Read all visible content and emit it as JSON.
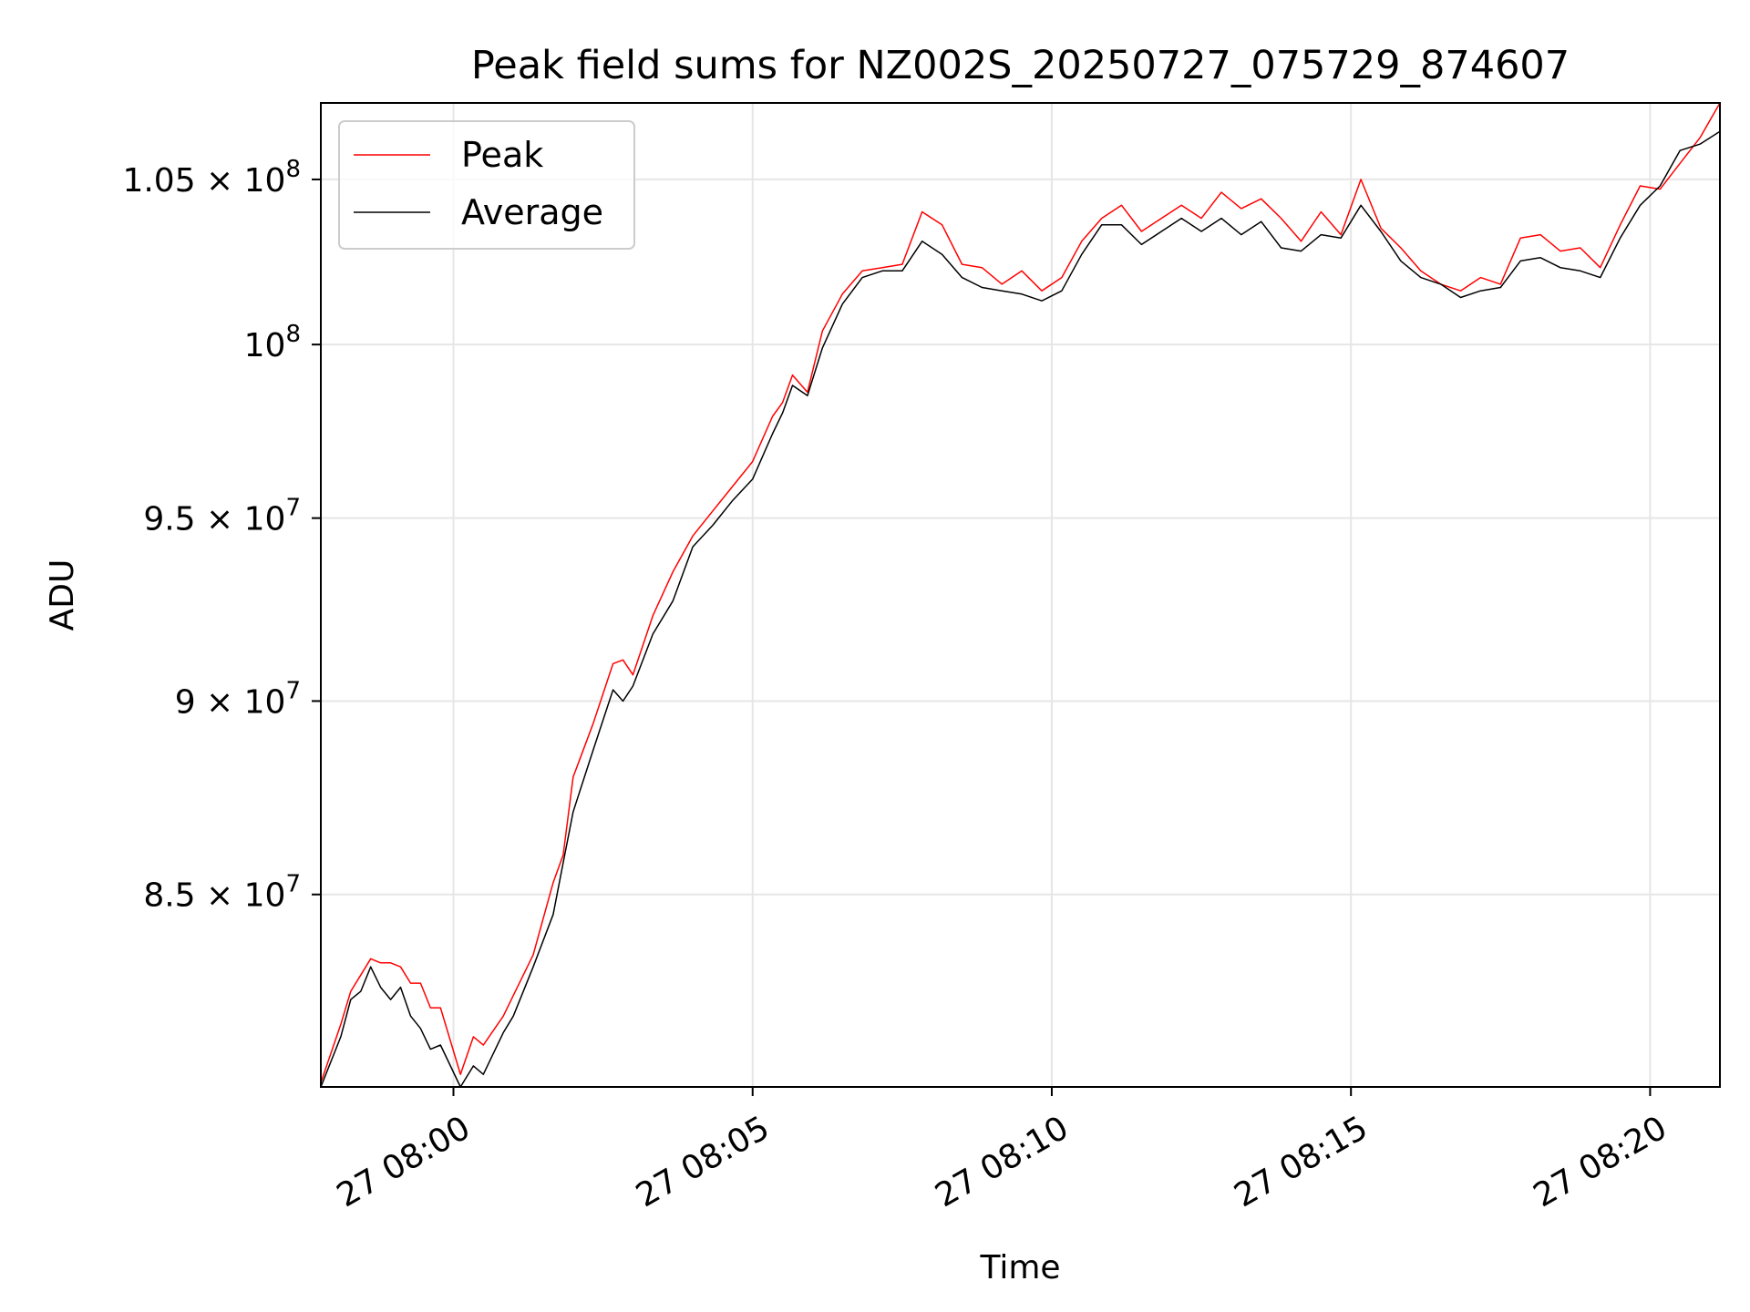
{
  "chart_data": {
    "type": "line",
    "title": "Peak field sums for NZ002S_20250727_075729_874607",
    "xlabel": "Time",
    "ylabel": "ADU",
    "y_scale": "log",
    "xlim": [
      "2025-07-27T07:57:47",
      "2025-07-27T08:21:10"
    ],
    "ylim": [
      80300000,
      107400000
    ],
    "x_ticks": [
      {
        "value": "2025-07-27T08:00:00",
        "label": "27 08:00"
      },
      {
        "value": "2025-07-27T08:05:00",
        "label": "27 08:05"
      },
      {
        "value": "2025-07-27T08:10:00",
        "label": "27 08:10"
      },
      {
        "value": "2025-07-27T08:15:00",
        "label": "27 08:15"
      },
      {
        "value": "2025-07-27T08:20:00",
        "label": "27 08:20"
      }
    ],
    "y_ticks": [
      {
        "value": 85000000,
        "mantissa": "8.5",
        "times": "×",
        "base": "10",
        "exp": "7"
      },
      {
        "value": 90000000,
        "mantissa": "9",
        "times": "×",
        "base": "10",
        "exp": "7"
      },
      {
        "value": 95000000,
        "mantissa": "9.5",
        "times": "×",
        "base": "10",
        "exp": "7"
      },
      {
        "value": 100000000,
        "mantissa": "",
        "times": "",
        "base": "10",
        "exp": "8"
      },
      {
        "value": 105000000,
        "mantissa": "1.05",
        "times": "×",
        "base": "10",
        "exp": "8"
      }
    ],
    "grid": true,
    "legend_position": "top-left",
    "x": [
      "2025-07-27T07:57:47",
      "2025-07-27T07:58:07",
      "2025-07-27T07:58:17",
      "2025-07-27T07:58:27",
      "2025-07-27T07:58:37",
      "2025-07-27T07:58:47",
      "2025-07-27T07:58:57",
      "2025-07-27T07:59:07",
      "2025-07-27T07:59:17",
      "2025-07-27T07:59:27",
      "2025-07-27T07:59:37",
      "2025-07-27T07:59:47",
      "2025-07-27T08:00:07",
      "2025-07-27T08:00:20",
      "2025-07-27T08:00:30",
      "2025-07-27T08:00:50",
      "2025-07-27T08:01:00",
      "2025-07-27T08:01:20",
      "2025-07-27T08:01:40",
      "2025-07-27T08:01:50",
      "2025-07-27T08:02:00",
      "2025-07-27T08:02:20",
      "2025-07-27T08:02:40",
      "2025-07-27T08:02:50",
      "2025-07-27T08:03:00",
      "2025-07-27T08:03:20",
      "2025-07-27T08:03:40",
      "2025-07-27T08:04:00",
      "2025-07-27T08:04:20",
      "2025-07-27T08:04:40",
      "2025-07-27T08:05:00",
      "2025-07-27T08:05:20",
      "2025-07-27T08:05:30",
      "2025-07-27T08:05:40",
      "2025-07-27T08:05:55",
      "2025-07-27T08:06:10",
      "2025-07-27T08:06:30",
      "2025-07-27T08:06:50",
      "2025-07-27T08:07:10",
      "2025-07-27T08:07:30",
      "2025-07-27T08:07:50",
      "2025-07-27T08:08:10",
      "2025-07-27T08:08:30",
      "2025-07-27T08:08:50",
      "2025-07-27T08:09:10",
      "2025-07-27T08:09:30",
      "2025-07-27T08:09:50",
      "2025-07-27T08:10:10",
      "2025-07-27T08:10:30",
      "2025-07-27T08:10:50",
      "2025-07-27T08:11:10",
      "2025-07-27T08:11:30",
      "2025-07-27T08:11:50",
      "2025-07-27T08:12:10",
      "2025-07-27T08:12:30",
      "2025-07-27T08:12:50",
      "2025-07-27T08:13:10",
      "2025-07-27T08:13:30",
      "2025-07-27T08:13:50",
      "2025-07-27T08:14:10",
      "2025-07-27T08:14:30",
      "2025-07-27T08:14:50",
      "2025-07-27T08:15:10",
      "2025-07-27T08:15:30",
      "2025-07-27T08:15:50",
      "2025-07-27T08:16:10",
      "2025-07-27T08:16:30",
      "2025-07-27T08:16:50",
      "2025-07-27T08:17:10",
      "2025-07-27T08:17:30",
      "2025-07-27T08:17:50",
      "2025-07-27T08:18:10",
      "2025-07-27T08:18:30",
      "2025-07-27T08:18:50",
      "2025-07-27T08:19:10",
      "2025-07-27T08:19:30",
      "2025-07-27T08:19:50",
      "2025-07-27T08:20:10",
      "2025-07-27T08:20:30",
      "2025-07-27T08:20:50",
      "2025-07-27T08:21:10"
    ],
    "series": [
      {
        "name": "Peak",
        "color": "#ff0000",
        "values": [
          80400000,
          81800000,
          82600000,
          83000000,
          83400000,
          83300000,
          83300000,
          83200000,
          82800000,
          82800000,
          82200000,
          82200000,
          80600000,
          81500000,
          81300000,
          82000000,
          82500000,
          83500000,
          85300000,
          86000000,
          88000000,
          89400000,
          91000000,
          91100000,
          90700000,
          92300000,
          93500000,
          94500000,
          95200000,
          95900000,
          96600000,
          97900000,
          98300000,
          99100000,
          98600000,
          100400000,
          101500000,
          102200000,
          102300000,
          102400000,
          104000000,
          103600000,
          102400000,
          102300000,
          101800000,
          102200000,
          101600000,
          102000000,
          103100000,
          103800000,
          104200000,
          103400000,
          103800000,
          104200000,
          103800000,
          104600000,
          104100000,
          104400000,
          103800000,
          103100000,
          104000000,
          103300000,
          105000000,
          103500000,
          102900000,
          102200000,
          101800000,
          101600000,
          102000000,
          101800000,
          103200000,
          103300000,
          102800000,
          102900000,
          102300000,
          103600000,
          104800000,
          104700000,
          105500000,
          106300000,
          107400000
        ]
      },
      {
        "name": "Average",
        "color": "#000000",
        "values": [
          80300000,
          81500000,
          82400000,
          82600000,
          83200000,
          82700000,
          82400000,
          82700000,
          82000000,
          81700000,
          81200000,
          81300000,
          80300000,
          80800000,
          80600000,
          81600000,
          82000000,
          83200000,
          84500000,
          85800000,
          87100000,
          88700000,
          90300000,
          90000000,
          90400000,
          91800000,
          92700000,
          94200000,
          94800000,
          95500000,
          96100000,
          97400000,
          98000000,
          98800000,
          98500000,
          99900000,
          101200000,
          102000000,
          102200000,
          102200000,
          103100000,
          102700000,
          102000000,
          101700000,
          101600000,
          101500000,
          101300000,
          101600000,
          102700000,
          103600000,
          103600000,
          103000000,
          103400000,
          103800000,
          103400000,
          103800000,
          103300000,
          103700000,
          102900000,
          102800000,
          103300000,
          103200000,
          104200000,
          103400000,
          102500000,
          102000000,
          101800000,
          101400000,
          101600000,
          101700000,
          102500000,
          102600000,
          102300000,
          102200000,
          102000000,
          103200000,
          104200000,
          104800000,
          105900000,
          106100000,
          106500000
        ]
      }
    ]
  }
}
